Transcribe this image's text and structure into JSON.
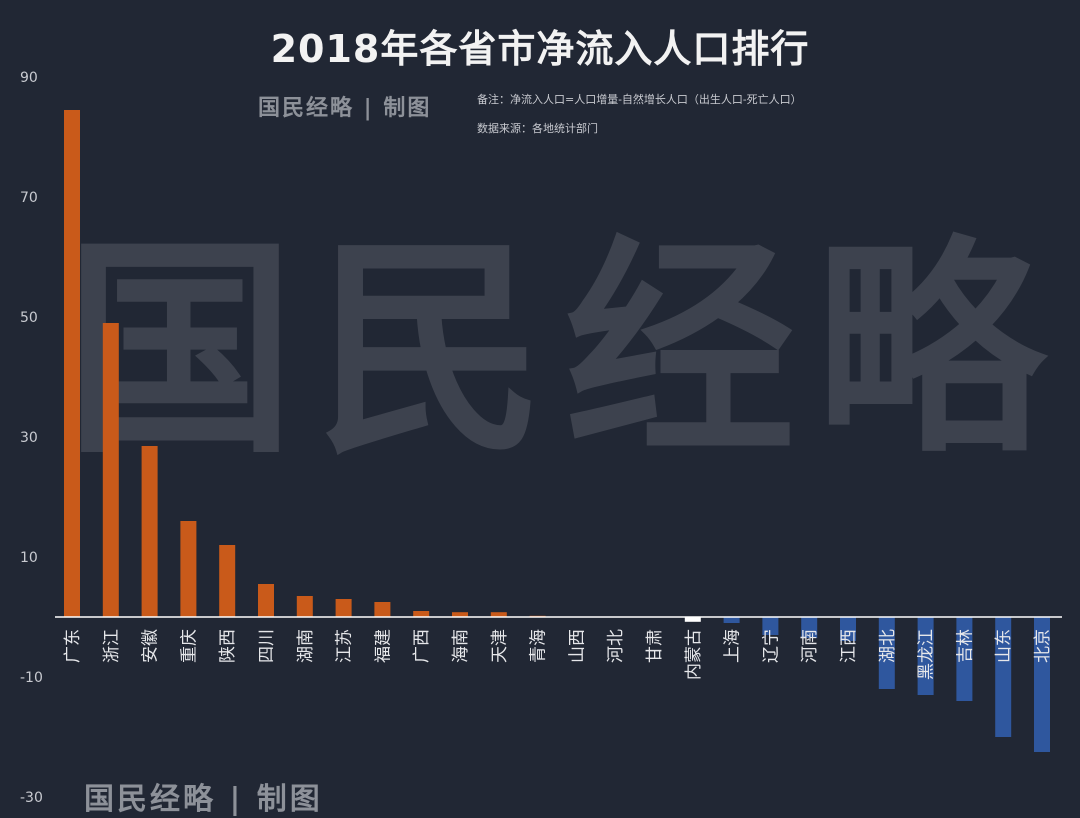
{
  "title": "2018年各省市净流入人口排行",
  "brand": {
    "top": "国民经略 | 制图",
    "bottom": "国民经略 | 制图",
    "watermark": "国民经略"
  },
  "notes": {
    "line1": "备注：净流入人口=人口增量-自然增长人口（出生人口-死亡人口）",
    "line2": "数据来源：各地统计部门"
  },
  "colors": {
    "background": "#212734",
    "positive": "#c95a1a",
    "negative": "#2f579e",
    "highlight": "#ffffff",
    "axis": "#ffffff"
  },
  "chart_data": {
    "type": "bar",
    "title": "2018年各省市净流入人口排行",
    "xlabel": "",
    "ylabel": "",
    "ylim": [
      -30,
      90
    ],
    "yticks": [
      90,
      70,
      50,
      30,
      10,
      -10,
      -30
    ],
    "grid": false,
    "legend": "none",
    "categories": [
      "广东",
      "浙江",
      "安徽",
      "重庆",
      "陕西",
      "四川",
      "湖南",
      "江苏",
      "福建",
      "广西",
      "海南",
      "天津",
      "青海",
      "山西",
      "河北",
      "甘肃",
      "内蒙古",
      "上海",
      "辽宁",
      "河南",
      "江西",
      "湖北",
      "黑龙江",
      "吉林",
      "山东",
      "北京"
    ],
    "values": [
      84.5,
      49,
      28.5,
      16,
      12,
      5.5,
      3.5,
      3,
      2.5,
      1,
      0.8,
      0.8,
      0.2,
      0,
      0,
      0,
      -0.8,
      -1,
      -3,
      -3.5,
      -4,
      -12,
      -13,
      -14,
      -20,
      -22.5
    ]
  }
}
